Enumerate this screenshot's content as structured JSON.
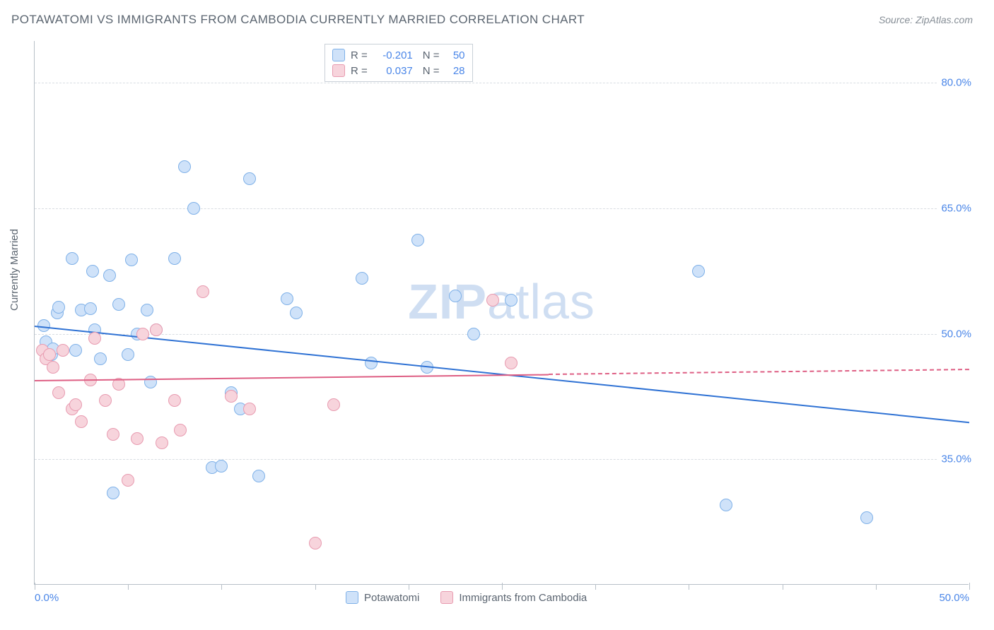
{
  "title": "POTAWATOMI VS IMMIGRANTS FROM CAMBODIA CURRENTLY MARRIED CORRELATION CHART",
  "source": "Source: ZipAtlas.com",
  "ylabel": "Currently Married",
  "watermark_bold": "ZIP",
  "watermark_light": "atlas",
  "chart": {
    "type": "scatter",
    "xlim": [
      0,
      50
    ],
    "ylim": [
      20,
      85
    ],
    "yticks": [
      35.0,
      50.0,
      65.0,
      80.0
    ],
    "ytick_labels": [
      "35.0%",
      "50.0%",
      "65.0%",
      "80.0%"
    ],
    "xticks": [
      0,
      25,
      50
    ],
    "xtick_labels": [
      "0.0%",
      "",
      "50.0%"
    ],
    "xtick_minors": [
      5,
      10,
      15,
      20,
      25,
      30,
      35,
      40,
      45
    ],
    "background_color": "#ffffff",
    "grid_color": "#d8dde2",
    "axis_color": "#b8c0c8"
  },
  "series": [
    {
      "name": "Potawatomi",
      "fill": "#cfe2f9",
      "stroke": "#7fb1e8",
      "trend_color": "#2f72d4",
      "R": "-0.201",
      "N": "50",
      "trend_start_y": 51.0,
      "trend_end_y": 39.5,
      "points": [
        [
          0.5,
          51.0
        ],
        [
          0.6,
          49.0
        ],
        [
          0.9,
          47.5
        ],
        [
          1.0,
          48.2
        ],
        [
          1.2,
          52.5
        ],
        [
          1.3,
          53.2
        ],
        [
          2.0,
          59.0
        ],
        [
          2.2,
          48.0
        ],
        [
          2.5,
          52.8
        ],
        [
          3.0,
          53.0
        ],
        [
          3.1,
          57.5
        ],
        [
          3.2,
          50.5
        ],
        [
          3.5,
          47.0
        ],
        [
          4.0,
          57.0
        ],
        [
          4.2,
          31.0
        ],
        [
          4.5,
          53.5
        ],
        [
          5.0,
          47.5
        ],
        [
          5.2,
          58.8
        ],
        [
          5.5,
          50.0
        ],
        [
          6.0,
          52.8
        ],
        [
          6.2,
          44.2
        ],
        [
          6.5,
          50.5
        ],
        [
          7.5,
          59.0
        ],
        [
          8.0,
          70.0
        ],
        [
          8.5,
          65.0
        ],
        [
          9.5,
          34.0
        ],
        [
          10.0,
          34.2
        ],
        [
          10.5,
          43.0
        ],
        [
          11.0,
          41.0
        ],
        [
          11.5,
          68.5
        ],
        [
          12.0,
          33.0
        ],
        [
          13.5,
          54.2
        ],
        [
          14.0,
          52.5
        ],
        [
          17.5,
          56.6
        ],
        [
          18.0,
          46.5
        ],
        [
          20.5,
          61.2
        ],
        [
          21.0,
          46.0
        ],
        [
          22.5,
          54.5
        ],
        [
          23.5,
          50.0
        ],
        [
          25.5,
          54.0
        ],
        [
          35.5,
          57.5
        ],
        [
          37.0,
          29.5
        ],
        [
          44.5,
          28.0
        ]
      ]
    },
    {
      "name": "Immigrants from Cambodia",
      "fill": "#f7d4dc",
      "stroke": "#e89bb0",
      "trend_color": "#de5f84",
      "R": "0.037",
      "N": "28",
      "trend_start_y": 44.5,
      "trend_end_y": 45.8,
      "trend_solid_until_x": 27.5,
      "points": [
        [
          0.4,
          48.0
        ],
        [
          0.6,
          47.0
        ],
        [
          0.8,
          47.5
        ],
        [
          1.0,
          46.0
        ],
        [
          1.3,
          43.0
        ],
        [
          1.5,
          48.0
        ],
        [
          2.0,
          41.0
        ],
        [
          2.2,
          41.5
        ],
        [
          2.5,
          39.5
        ],
        [
          3.0,
          44.5
        ],
        [
          3.2,
          49.5
        ],
        [
          3.8,
          42.0
        ],
        [
          4.2,
          38.0
        ],
        [
          4.5,
          44.0
        ],
        [
          5.0,
          32.5
        ],
        [
          5.5,
          37.5
        ],
        [
          5.8,
          50.0
        ],
        [
          6.5,
          50.5
        ],
        [
          6.8,
          37.0
        ],
        [
          7.5,
          42.0
        ],
        [
          7.8,
          38.5
        ],
        [
          9.0,
          55.0
        ],
        [
          10.5,
          42.5
        ],
        [
          11.5,
          41.0
        ],
        [
          15.0,
          25.0
        ],
        [
          16.0,
          41.5
        ],
        [
          24.5,
          54.0
        ],
        [
          25.5,
          46.5
        ]
      ]
    }
  ],
  "stats_legend": {
    "r_label": "R =",
    "n_label": "N ="
  },
  "bottom_legend": {
    "item1": "Potawatomi",
    "item2": "Immigrants from Cambodia"
  }
}
